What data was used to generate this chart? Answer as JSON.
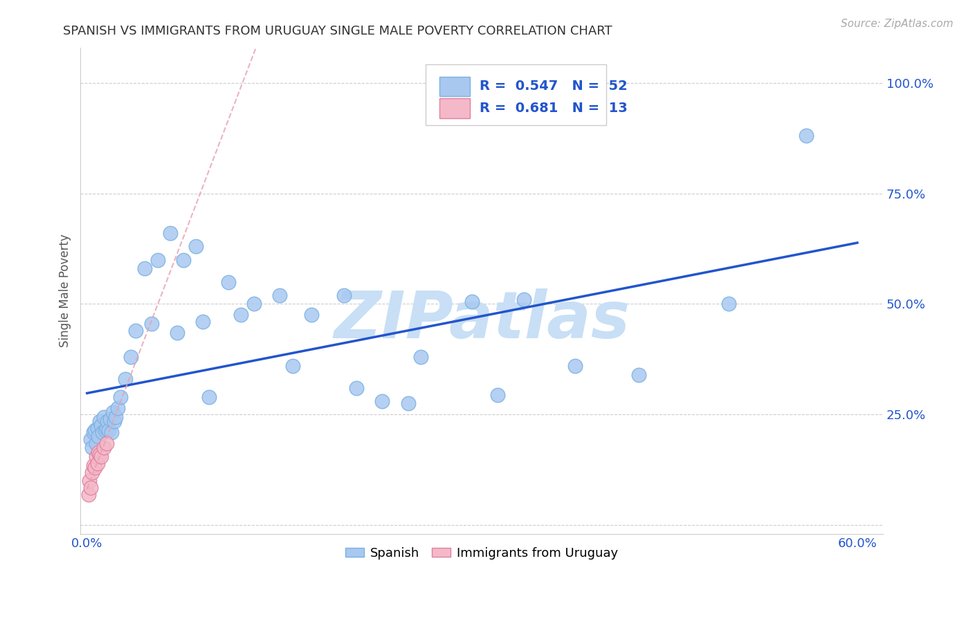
{
  "title": "SPANISH VS IMMIGRANTS FROM URUGUAY SINGLE MALE POVERTY CORRELATION CHART",
  "source": "Source: ZipAtlas.com",
  "ylabel": "Single Male Poverty",
  "xlim": [
    -0.005,
    0.62
  ],
  "ylim": [
    -0.02,
    1.08
  ],
  "spanish_color": "#a8c8f0",
  "spanish_edge_color": "#7ab0e0",
  "uruguay_color": "#f4b8c8",
  "uruguay_edge_color": "#e080a0",
  "regression_line_color_spanish": "#2255cc",
  "regression_line_color_uruguay": "#e8a0b0",
  "blue_text_color": "#2255cc",
  "title_color": "#333333",
  "grid_color": "#cccccc",
  "watermark_color": "#c8dff5",
  "legend_R_spanish": "0.547",
  "legend_N_spanish": "52",
  "legend_R_uruguay": "0.681",
  "legend_N_uruguay": "13",
  "spanish_x": [
    0.003,
    0.004,
    0.005,
    0.006,
    0.007,
    0.008,
    0.009,
    0.01,
    0.011,
    0.012,
    0.013,
    0.014,
    0.015,
    0.016,
    0.017,
    0.018,
    0.019,
    0.02,
    0.021,
    0.022,
    0.024,
    0.026,
    0.03,
    0.034,
    0.038,
    0.045,
    0.055,
    0.065,
    0.075,
    0.085,
    0.095,
    0.11,
    0.13,
    0.15,
    0.175,
    0.2,
    0.23,
    0.26,
    0.3,
    0.34,
    0.38,
    0.43,
    0.05,
    0.07,
    0.09,
    0.12,
    0.16,
    0.21,
    0.25,
    0.32,
    0.5,
    0.56
  ],
  "spanish_y": [
    0.195,
    0.175,
    0.21,
    0.215,
    0.185,
    0.22,
    0.2,
    0.235,
    0.225,
    0.21,
    0.245,
    0.215,
    0.22,
    0.235,
    0.215,
    0.24,
    0.21,
    0.255,
    0.235,
    0.245,
    0.265,
    0.29,
    0.33,
    0.38,
    0.44,
    0.58,
    0.6,
    0.66,
    0.6,
    0.63,
    0.29,
    0.55,
    0.5,
    0.52,
    0.475,
    0.52,
    0.28,
    0.38,
    0.505,
    0.51,
    0.36,
    0.34,
    0.455,
    0.435,
    0.46,
    0.475,
    0.36,
    0.31,
    0.275,
    0.295,
    0.5,
    0.88
  ],
  "uruguay_x": [
    0.001,
    0.002,
    0.003,
    0.004,
    0.005,
    0.006,
    0.007,
    0.008,
    0.009,
    0.01,
    0.011,
    0.013,
    0.015
  ],
  "uruguay_y": [
    0.07,
    0.1,
    0.085,
    0.12,
    0.135,
    0.13,
    0.155,
    0.14,
    0.165,
    0.16,
    0.155,
    0.175,
    0.185
  ]
}
